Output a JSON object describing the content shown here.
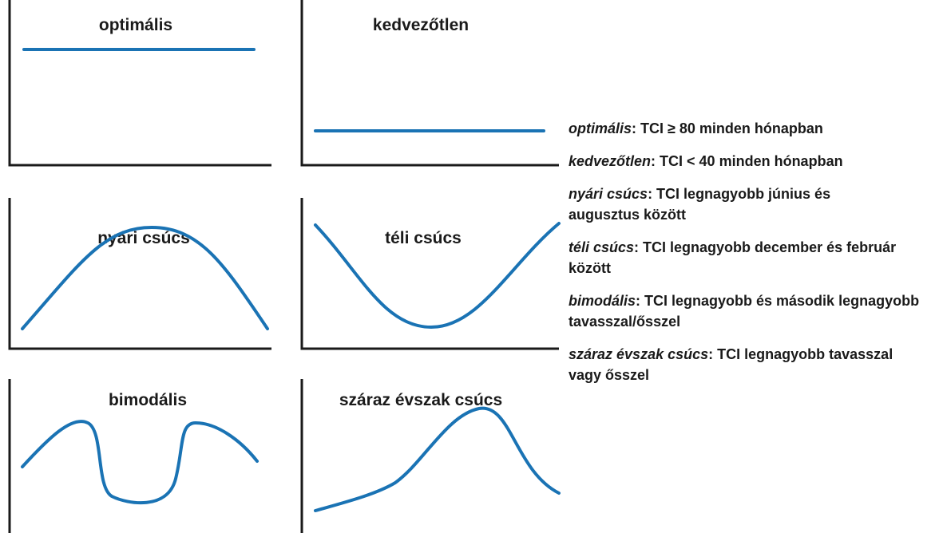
{
  "panels": [
    {
      "title": "optimális"
    },
    {
      "title": "kedvezőtlen"
    },
    {
      "title": "nyári csúcs"
    },
    {
      "title": "téli csúcs"
    },
    {
      "title": "bimodális"
    },
    {
      "title": "száraz évszak csúcs"
    }
  ],
  "legend": [
    {
      "term": "optimális",
      "definition": ": TCI ≥ 80 minden hónapban"
    },
    {
      "term": "kedvezőtlen",
      "definition": ": TCI < 40 minden hónapban"
    },
    {
      "term": "nyári csúcs",
      "definition": ": TCI legnagyobb június és augusztus között"
    },
    {
      "term": "téli csúcs",
      "definition": ": TCI legnagyobb december és február között"
    },
    {
      "term": "bimodális",
      "definition": ": TCI legnagyobb és második legnagyobb tavasszal/ősszel"
    },
    {
      "term": "száraz évszak csúcs",
      "definition": ": TCI legnagyobb tavasszal vagy ősszel"
    }
  ]
}
